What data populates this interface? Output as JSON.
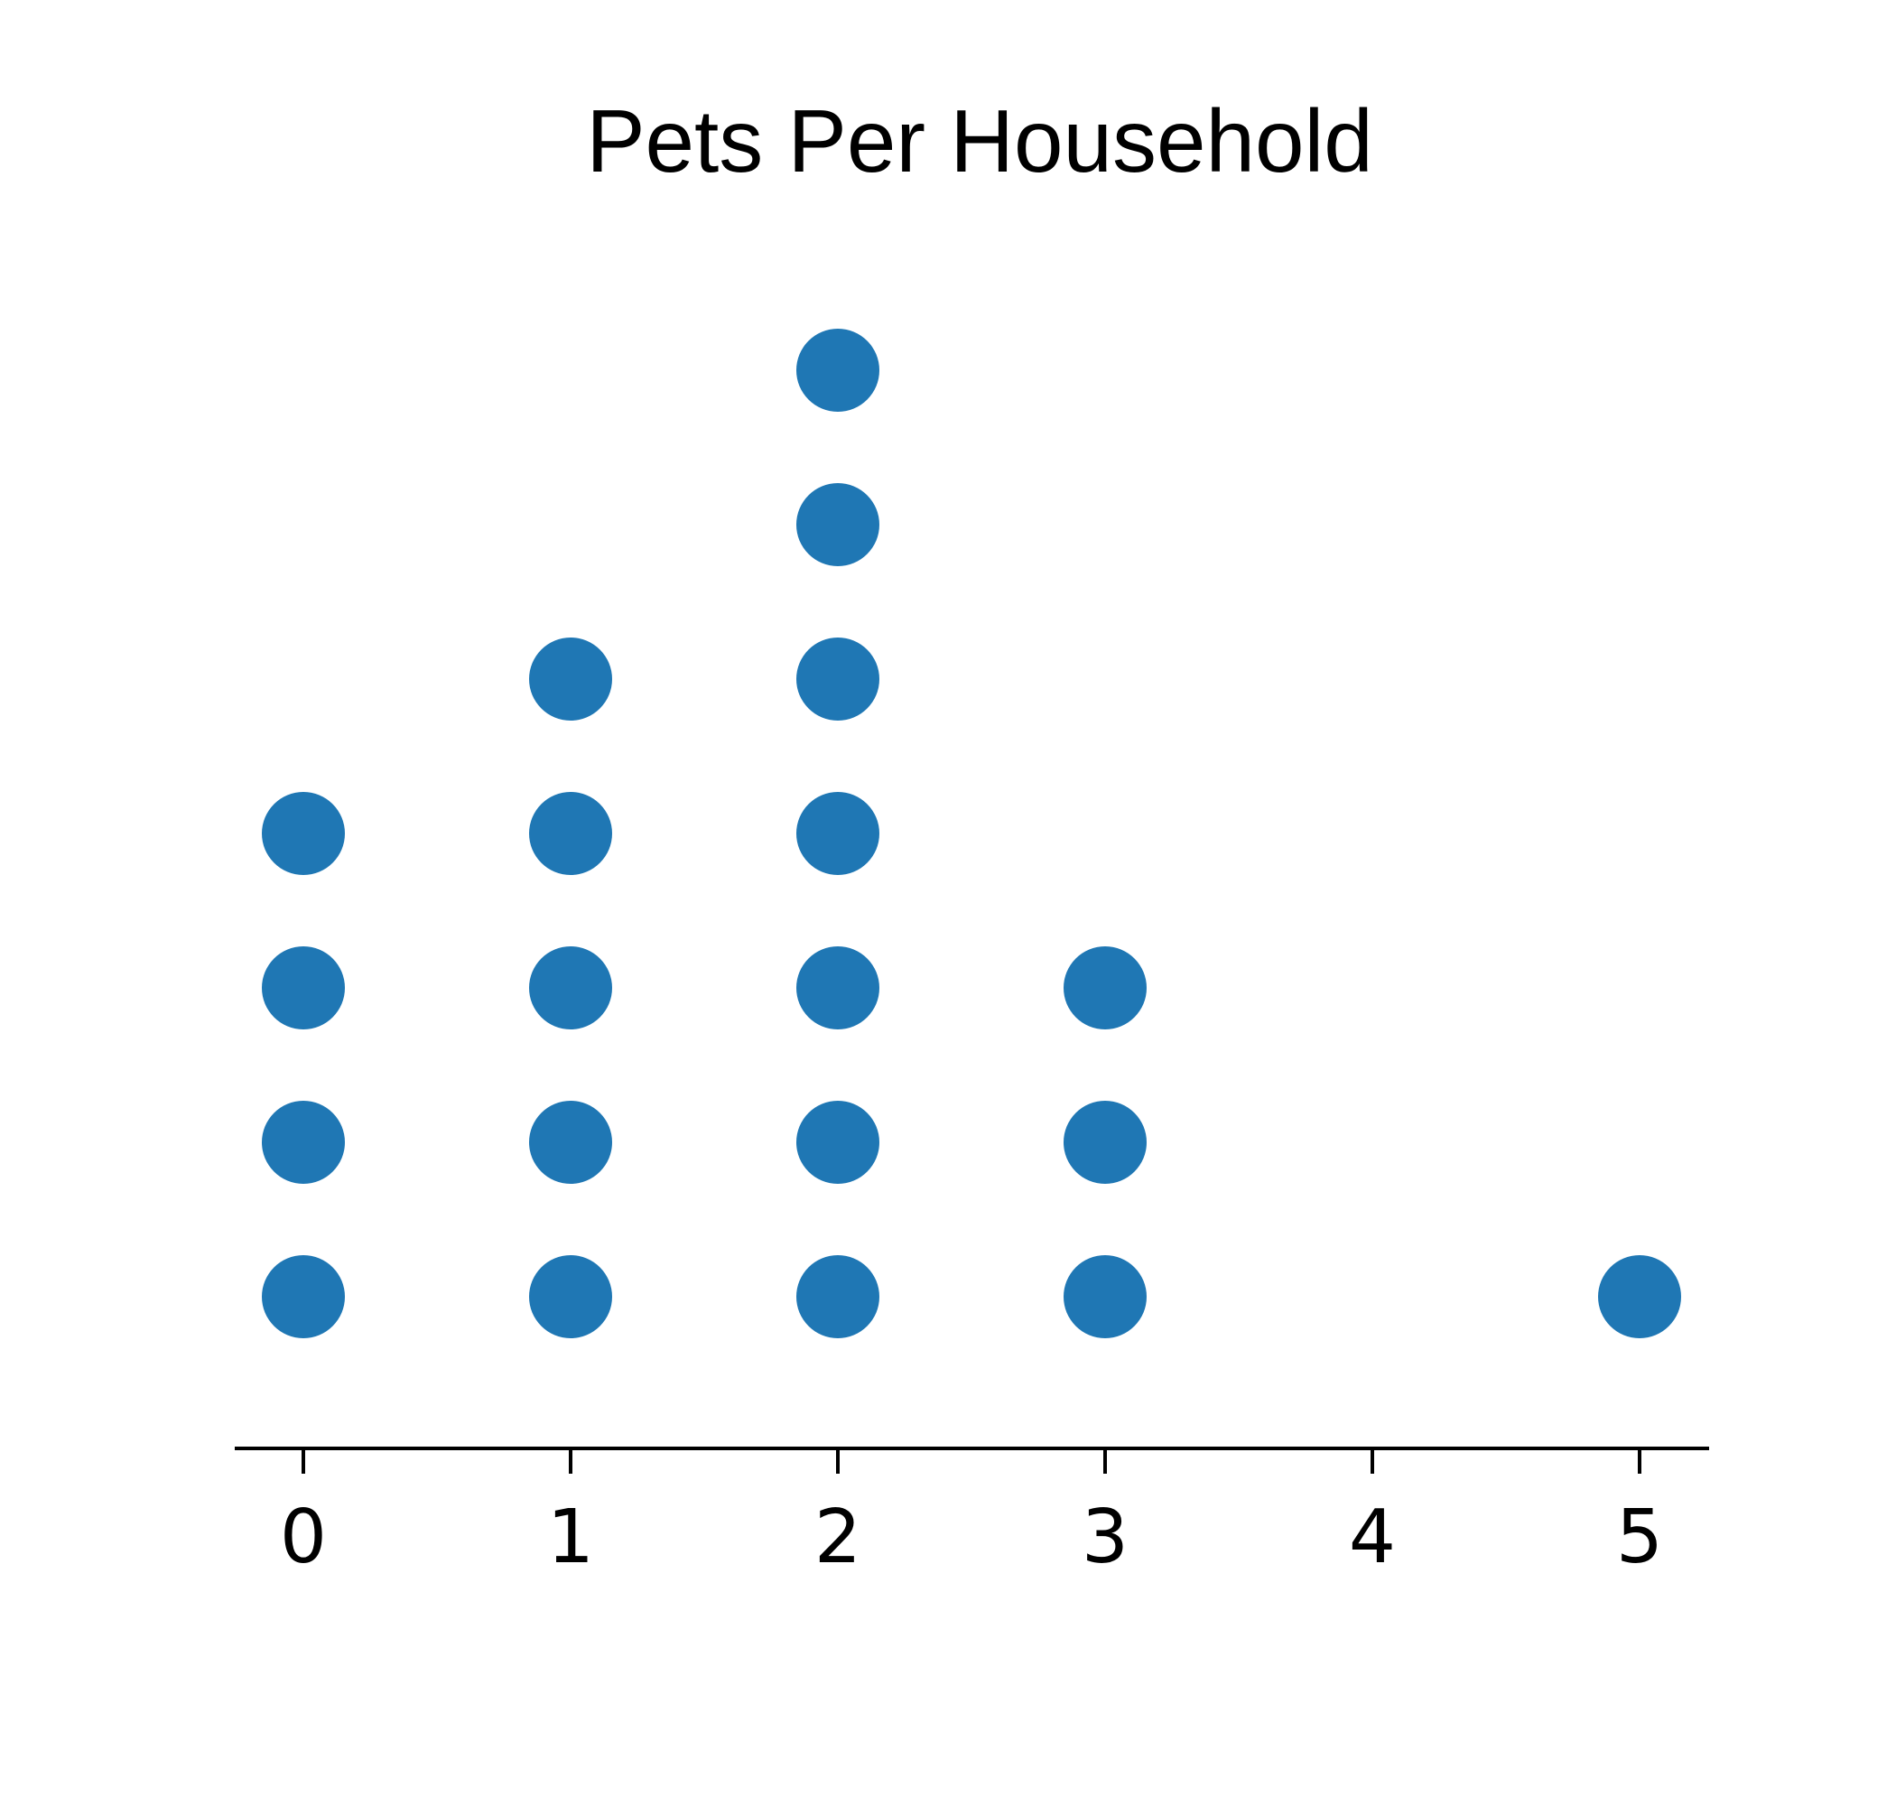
{
  "chart_data": {
    "type": "scatter",
    "title": "Pets Per Household",
    "xlabel": "",
    "ylabel": "",
    "x_ticks": [
      0,
      1,
      2,
      3,
      4,
      5
    ],
    "x_tick_labels": [
      "0",
      "1",
      "2",
      "3",
      "4",
      "5"
    ],
    "xlim": [
      -0.25,
      5.25
    ],
    "categories": [
      0,
      1,
      2,
      3,
      4,
      5
    ],
    "counts": [
      4,
      5,
      7,
      3,
      0,
      1
    ],
    "dot_color": "#1f77b4",
    "axis_color": "#000000",
    "grid": false,
    "legend": "none"
  }
}
